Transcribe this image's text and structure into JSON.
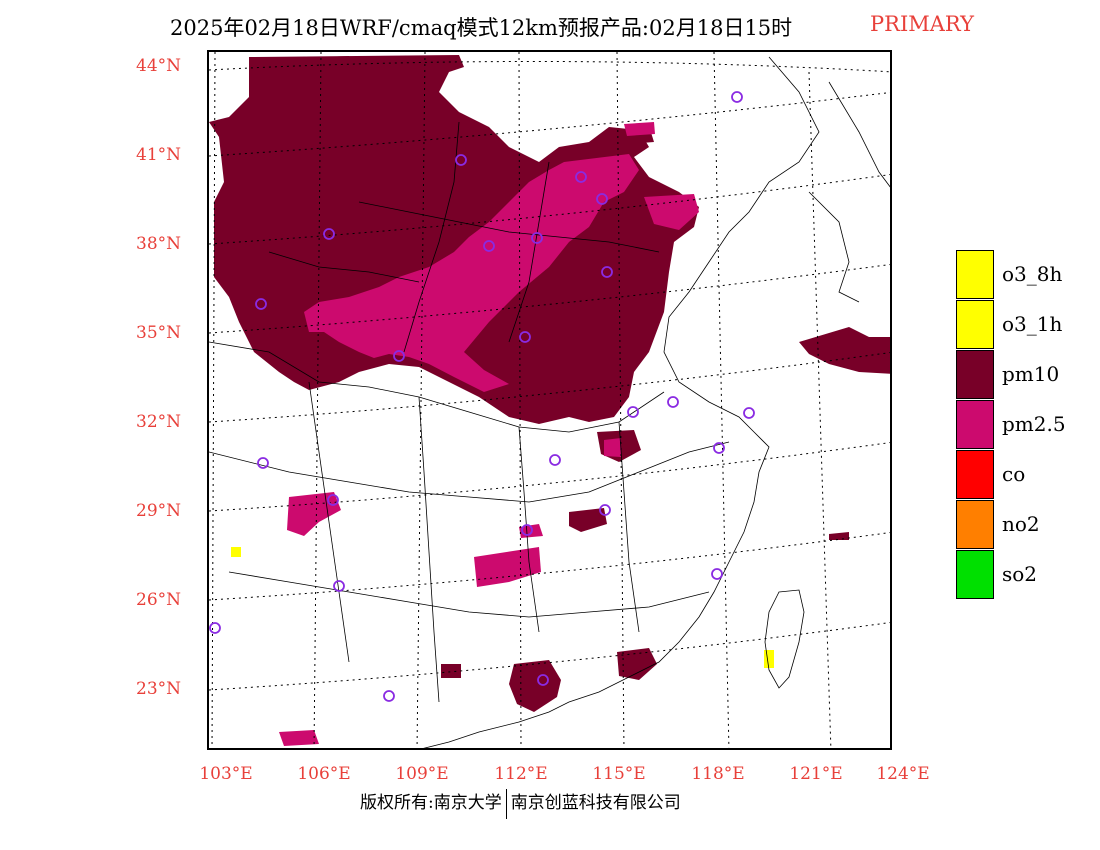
{
  "title": {
    "main": "2025年02月18日WRF/cmaq模式12km预报产品:02月18日15时",
    "tag": "PRIMARY"
  },
  "colors": {
    "o3_8h": "#ffff00",
    "o3_1h": "#ffff00",
    "pm10": "#780028",
    "pm25": "#cc0a6e",
    "co": "#ff0000",
    "no2": "#ff7f00",
    "so2": "#00e000",
    "axis_label": "#e8403a",
    "station": "#8a2be2"
  },
  "axes": {
    "lat_labels": [
      "44°N",
      "41°N",
      "38°N",
      "35°N",
      "32°N",
      "29°N",
      "26°N",
      "23°N"
    ],
    "lon_labels": [
      "103°E",
      "106°E",
      "109°E",
      "112°E",
      "115°E",
      "118°E",
      "121°E",
      "124°E"
    ]
  },
  "legend": [
    {
      "label": "o3_8h",
      "color": "#ffff00"
    },
    {
      "label": "o3_1h",
      "color": "#ffff00"
    },
    {
      "label": "pm10",
      "color": "#780028"
    },
    {
      "label": "pm2.5",
      "color": "#cc0a6e"
    },
    {
      "label": "co",
      "color": "#ff0000"
    },
    {
      "label": "no2",
      "color": "#ff7f00"
    },
    {
      "label": "so2",
      "color": "#00e000"
    }
  ],
  "footer": {
    "left": "版权所有:南京大学",
    "right": "南京创蓝科技有限公司"
  }
}
